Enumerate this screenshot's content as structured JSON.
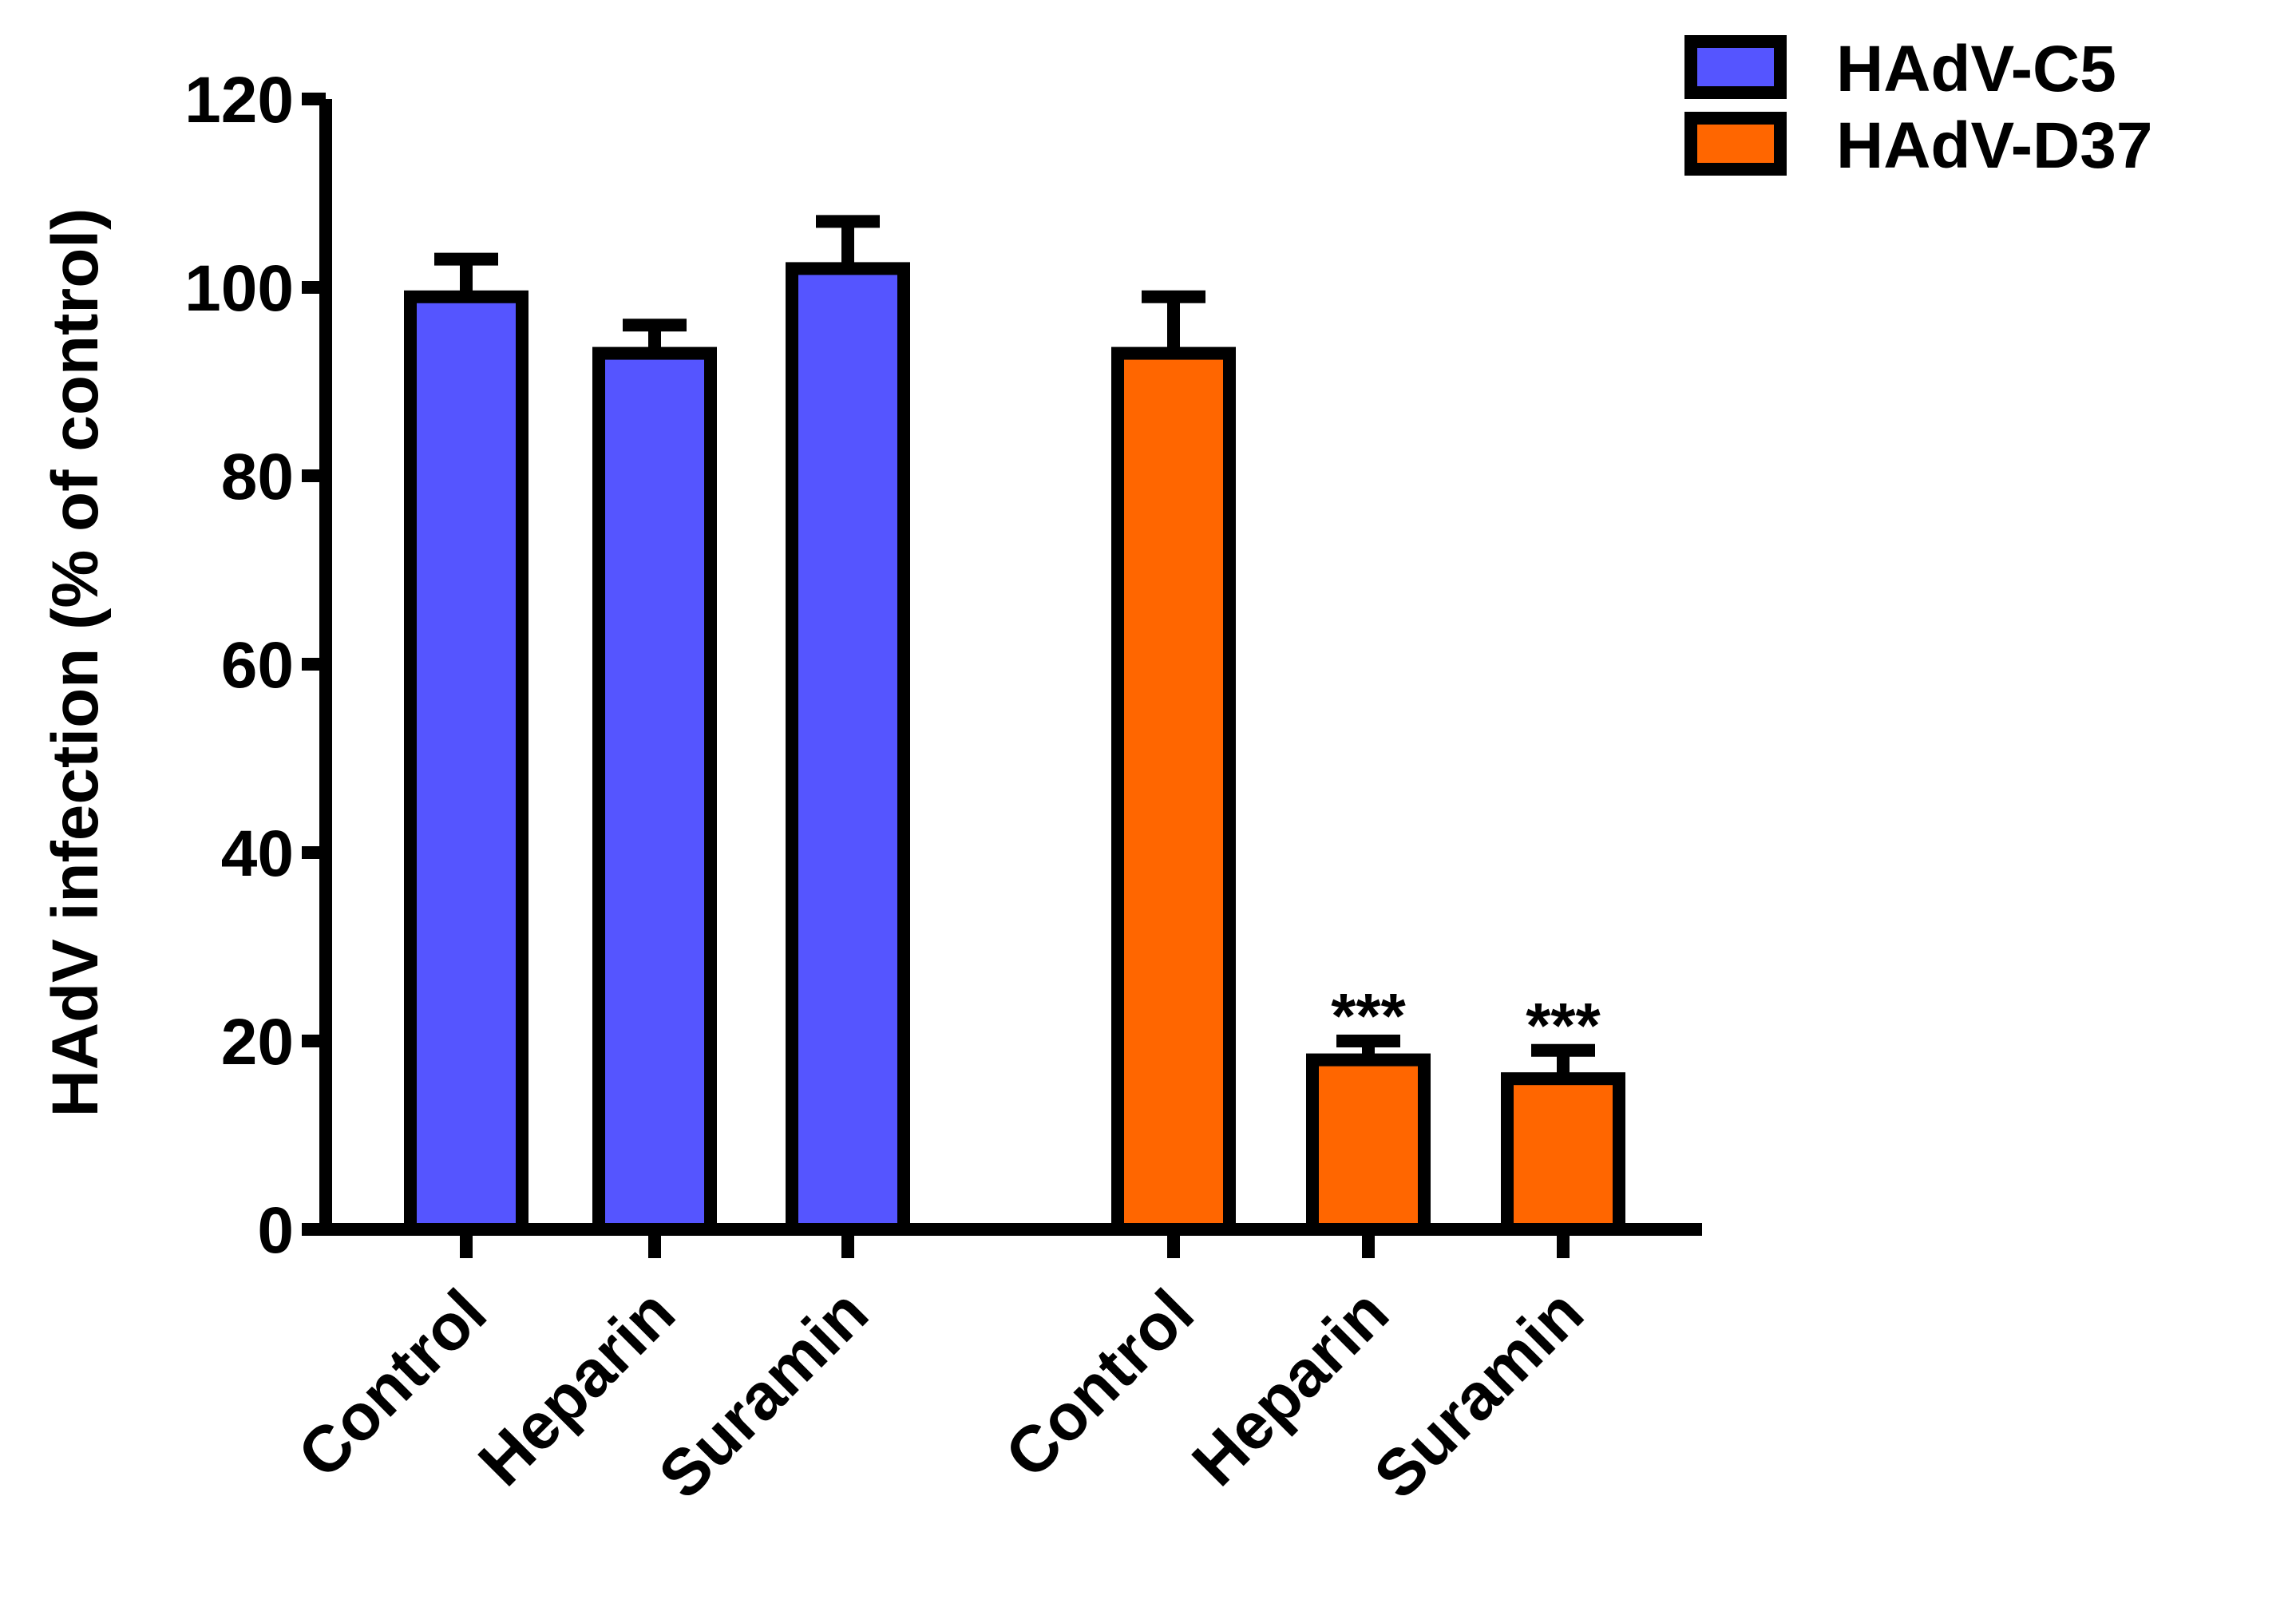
{
  "chart_data": {
    "type": "bar",
    "ylabel": "HAdV infection (% of control)",
    "ylim": [
      0,
      120
    ],
    "yticks": [
      0,
      20,
      40,
      60,
      80,
      100,
      120
    ],
    "grid": false,
    "legend_position": "top-right",
    "series": [
      {
        "name": "HAdV-C5",
        "color": "#5555ff",
        "categories": [
          "Control",
          "Heparin",
          "Suramin"
        ],
        "values": [
          99,
          93,
          102
        ],
        "errors": [
          4,
          3,
          5
        ],
        "annotations": [
          "",
          "",
          ""
        ]
      },
      {
        "name": "HAdV-D37",
        "color": "#ff6600",
        "categories": [
          "Control",
          "Heparin",
          "Suramin"
        ],
        "values": [
          93,
          18,
          16
        ],
        "errors": [
          6,
          2,
          3
        ],
        "annotations": [
          "",
          "***",
          "***"
        ]
      }
    ]
  }
}
